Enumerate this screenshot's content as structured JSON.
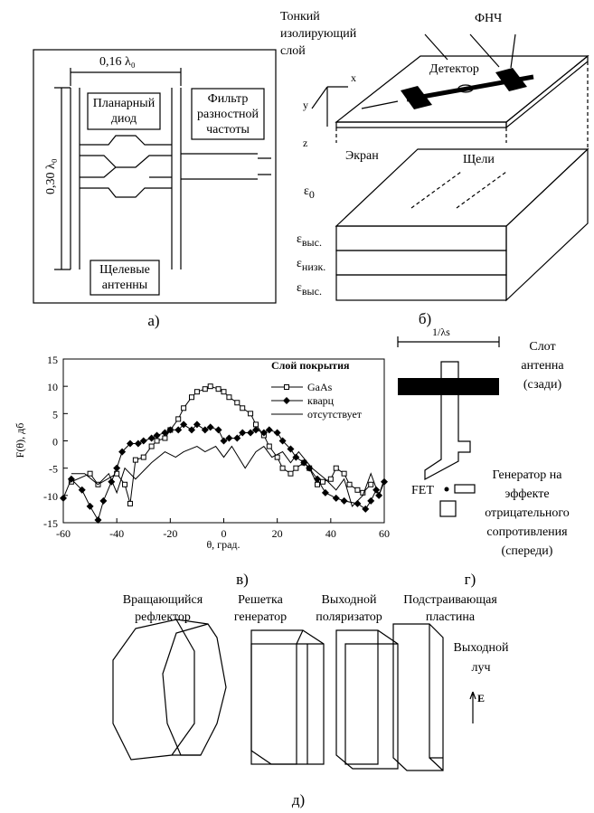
{
  "panel_a": {
    "width_label": "0,16 λ₀",
    "height_label": "0,30 λ₀",
    "diode_label": [
      "Планарный",
      "диод"
    ],
    "filter_label": [
      "Фильтр",
      "разностной",
      "частоты"
    ],
    "antenna_label": [
      "Щелевые",
      "антенны"
    ],
    "caption": "а)"
  },
  "panel_b": {
    "layer_label": [
      "Тонкий",
      "изолирующий",
      "слой"
    ],
    "lpf_label": "ФНЧ",
    "detector_label": "Детектор",
    "axis_x": "x",
    "axis_y": "y",
    "axis_z": "z",
    "screen_label": "Экран",
    "slots_label": "Щели",
    "eps_0": {
      "symbol": "ε",
      "sub": "0"
    },
    "eps_high_1": {
      "symbol": "ε",
      "sub": "выс."
    },
    "eps_low": {
      "symbol": "ε",
      "sub": "низк."
    },
    "eps_high_2": {
      "symbol": "ε",
      "sub": "выс."
    },
    "caption": "б)"
  },
  "chart_data": {
    "type": "line",
    "caption": "в)",
    "xlabel": "θ, град.",
    "ylabel": "F(θ), дб",
    "legend_title": "Слой покрытия",
    "xlim": [
      -60,
      60
    ],
    "xticks": [
      -60,
      -40,
      -20,
      0,
      20,
      40,
      60
    ],
    "ylim": [
      -15,
      15
    ],
    "yticks": [
      -15,
      -10,
      -5,
      0,
      5,
      10,
      15
    ],
    "series": [
      {
        "name": "GaAs",
        "color": "#000000",
        "marker": "square",
        "x": [
          -57,
          -50,
          -47,
          -40,
          -37,
          -35,
          -33,
          -30,
          -27,
          -25,
          -22,
          -20,
          -17,
          -15,
          -12,
          -10,
          -7,
          -5,
          -2,
          0,
          2,
          5,
          7,
          10,
          12,
          15,
          17,
          20,
          22,
          25,
          27,
          30,
          32,
          35,
          37,
          40,
          42,
          45,
          47,
          50,
          52,
          55
        ],
        "values": [
          -7.5,
          -6,
          -8,
          -6,
          -8,
          -11.5,
          -3.5,
          -3,
          -1,
          0,
          0.5,
          2,
          4,
          6,
          8,
          9,
          9.5,
          10,
          9.5,
          9,
          8,
          7,
          6,
          5,
          3,
          1,
          -1,
          -3,
          -5,
          -6,
          -5,
          -4,
          -5,
          -8,
          -7.5,
          -7,
          -5,
          -6,
          -8,
          -9,
          -9.5,
          -8
        ]
      },
      {
        "name": "кварц",
        "color": "#000000",
        "marker": "diamond",
        "x": [
          -60,
          -57,
          -53,
          -50,
          -47,
          -45,
          -42,
          -40,
          -38,
          -35,
          -32,
          -30,
          -27,
          -25,
          -22,
          -20,
          -17,
          -15,
          -12,
          -10,
          -7,
          -5,
          -2,
          0,
          2,
          5,
          7,
          10,
          12,
          15,
          17,
          20,
          22,
          25,
          27,
          30,
          32,
          35,
          38,
          42,
          45,
          50,
          53,
          55,
          57,
          58,
          60
        ],
        "values": [
          -10.5,
          -7,
          -9,
          -12,
          -14.5,
          -11,
          -7.5,
          -5,
          -2,
          -0.5,
          -0.5,
          0,
          0.5,
          1,
          1.5,
          2,
          2,
          3,
          2,
          3,
          2,
          2.5,
          2,
          0,
          0.5,
          0.5,
          1.5,
          1.5,
          2,
          1.5,
          2,
          1.5,
          0,
          -1.5,
          -3,
          -4,
          -5,
          -7,
          -9.5,
          -10.5,
          -11,
          -11.5,
          -12.5,
          -11,
          -9,
          -10,
          -7.5
        ]
      },
      {
        "name": "отсутствует",
        "color": "#000000",
        "marker": "none",
        "x": [
          -57,
          -52,
          -47,
          -43,
          -40,
          -37,
          -33,
          -27,
          -22,
          -18,
          -15,
          -10,
          -7,
          -3,
          0,
          3,
          8,
          12,
          15,
          18,
          22,
          25,
          28,
          33,
          38,
          42,
          45,
          48,
          52,
          55,
          58,
          60
        ],
        "values": [
          -6,
          -6,
          -8,
          -6,
          -9.5,
          -5,
          -7,
          -4,
          -2,
          -3,
          -2,
          -1,
          -2,
          -1,
          -3,
          -1,
          -5,
          -2,
          -1,
          -3,
          -2,
          -4,
          -2,
          -5,
          -7,
          -9,
          -7,
          -12,
          -10,
          -6,
          -10,
          -7
        ]
      }
    ]
  },
  "panel_g": {
    "width_label": "1/λs",
    "antenna_label": [
      "Слот",
      "антенна",
      "(сзади)"
    ],
    "fet_label": "FET",
    "generator_label": [
      "Генератор на",
      "эффекте",
      "отрицательного",
      "сопротивления",
      "(спереди)"
    ],
    "caption": "г)"
  },
  "panel_d": {
    "reflector_label": [
      "Вращающийся",
      "рефлектор"
    ],
    "grid_label": [
      "Решетка",
      "генератор"
    ],
    "polarizer_label": [
      "Выходной",
      "поляризатор"
    ],
    "plate_label": [
      "Подстраивающая",
      "пластина"
    ],
    "beam_label": [
      "Выходной",
      "луч"
    ],
    "field_label": "E",
    "caption": "д)"
  }
}
